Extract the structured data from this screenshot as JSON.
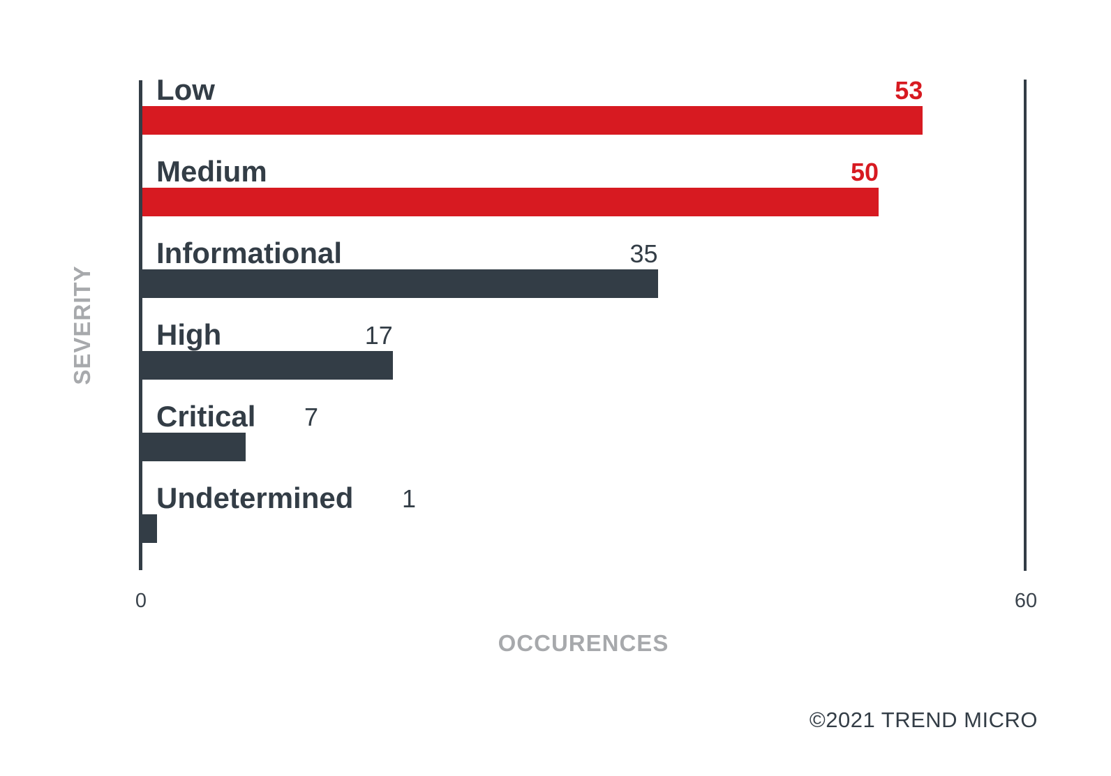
{
  "chart_data": {
    "type": "bar",
    "orientation": "horizontal",
    "title": "",
    "categories": [
      "Low",
      "Medium",
      "Informational",
      "High",
      "Critical",
      "Undetermined"
    ],
    "values": [
      53,
      50,
      35,
      17,
      7,
      1
    ],
    "bar_colors": [
      "#d71a21",
      "#d71a21",
      "#333d46",
      "#333d46",
      "#333d46",
      "#333d46"
    ],
    "xlabel": "OCCURENCES",
    "ylabel": "SEVERITY",
    "xlim": [
      0,
      60
    ],
    "x_tick_labels": [
      "0",
      "60"
    ],
    "grid": false,
    "legend": false,
    "value_labels_shown": true
  },
  "colors": {
    "accent_red": "#d71a21",
    "dark": "#333d46",
    "axis_label_gray": "#a7a9ac",
    "background": "#ffffff"
  },
  "footer": {
    "copyright": "©2021 TREND MICRO"
  }
}
